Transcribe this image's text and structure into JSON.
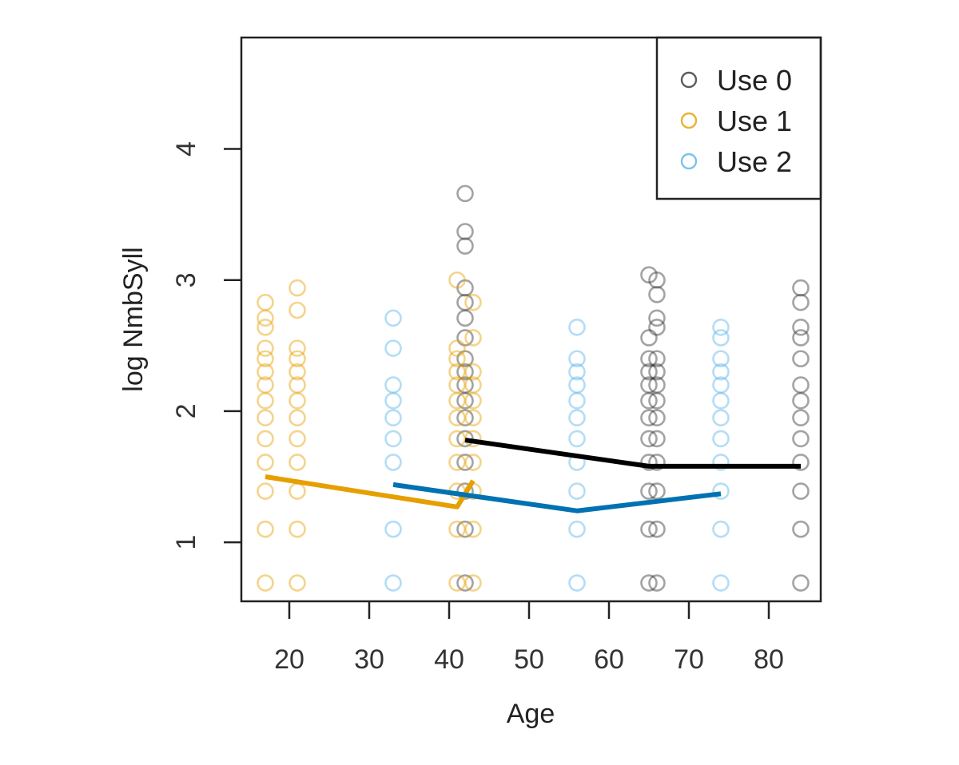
{
  "chart_data": {
    "type": "scatter",
    "xlabel": "Age",
    "ylabel": "log NmbSyll",
    "xlim": [
      14,
      86.5
    ],
    "ylim": [
      0.55,
      4.85
    ],
    "xticks": [
      20,
      30,
      40,
      50,
      60,
      70,
      80
    ],
    "yticks": [
      1,
      2,
      3,
      4
    ],
    "legend": {
      "position": "top-right",
      "entries": [
        "Use 0",
        "Use 1",
        "Use 2"
      ]
    },
    "series": [
      {
        "name": "Use 0",
        "color": "#333333",
        "points": [
          {
            "x": 42,
            "y": 0.69
          },
          {
            "x": 42,
            "y": 1.1
          },
          {
            "x": 42,
            "y": 1.39
          },
          {
            "x": 42,
            "y": 1.61
          },
          {
            "x": 42,
            "y": 1.79
          },
          {
            "x": 42,
            "y": 1.95
          },
          {
            "x": 42,
            "y": 2.08
          },
          {
            "x": 42,
            "y": 2.2
          },
          {
            "x": 42,
            "y": 2.3
          },
          {
            "x": 42,
            "y": 2.4
          },
          {
            "x": 42,
            "y": 2.56
          },
          {
            "x": 42,
            "y": 2.71
          },
          {
            "x": 42,
            "y": 2.83
          },
          {
            "x": 42,
            "y": 2.94
          },
          {
            "x": 42,
            "y": 3.26
          },
          {
            "x": 42,
            "y": 3.37
          },
          {
            "x": 42,
            "y": 3.66
          },
          {
            "x": 65,
            "y": 0.69
          },
          {
            "x": 65,
            "y": 1.1
          },
          {
            "x": 65,
            "y": 1.39
          },
          {
            "x": 65,
            "y": 1.61
          },
          {
            "x": 65,
            "y": 1.79
          },
          {
            "x": 65,
            "y": 1.95
          },
          {
            "x": 65,
            "y": 2.08
          },
          {
            "x": 65,
            "y": 2.2
          },
          {
            "x": 65,
            "y": 2.3
          },
          {
            "x": 65,
            "y": 2.4
          },
          {
            "x": 65,
            "y": 2.56
          },
          {
            "x": 65,
            "y": 3.04
          },
          {
            "x": 66,
            "y": 0.69
          },
          {
            "x": 66,
            "y": 1.1
          },
          {
            "x": 66,
            "y": 1.39
          },
          {
            "x": 66,
            "y": 1.61
          },
          {
            "x": 66,
            "y": 1.79
          },
          {
            "x": 66,
            "y": 1.95
          },
          {
            "x": 66,
            "y": 2.08
          },
          {
            "x": 66,
            "y": 2.2
          },
          {
            "x": 66,
            "y": 2.3
          },
          {
            "x": 66,
            "y": 2.4
          },
          {
            "x": 66,
            "y": 2.64
          },
          {
            "x": 66,
            "y": 2.71
          },
          {
            "x": 66,
            "y": 2.89
          },
          {
            "x": 66,
            "y": 3.0
          },
          {
            "x": 84,
            "y": 0.69
          },
          {
            "x": 84,
            "y": 1.1
          },
          {
            "x": 84,
            "y": 1.39
          },
          {
            "x": 84,
            "y": 1.61
          },
          {
            "x": 84,
            "y": 1.79
          },
          {
            "x": 84,
            "y": 1.95
          },
          {
            "x": 84,
            "y": 2.08
          },
          {
            "x": 84,
            "y": 2.2
          },
          {
            "x": 84,
            "y": 2.4
          },
          {
            "x": 84,
            "y": 2.56
          },
          {
            "x": 84,
            "y": 2.64
          },
          {
            "x": 84,
            "y": 2.83
          },
          {
            "x": 84,
            "y": 2.94
          }
        ],
        "trend": [
          {
            "x": 42,
            "y": 1.78
          },
          {
            "x": 65,
            "y": 1.58
          },
          {
            "x": 84,
            "y": 1.58
          }
        ]
      },
      {
        "name": "Use 1",
        "color": "#E69F00",
        "points": [
          {
            "x": 17,
            "y": 0.69
          },
          {
            "x": 17,
            "y": 1.1
          },
          {
            "x": 17,
            "y": 1.39
          },
          {
            "x": 17,
            "y": 1.61
          },
          {
            "x": 17,
            "y": 1.79
          },
          {
            "x": 17,
            "y": 1.95
          },
          {
            "x": 17,
            "y": 2.08
          },
          {
            "x": 17,
            "y": 2.2
          },
          {
            "x": 17,
            "y": 2.3
          },
          {
            "x": 17,
            "y": 2.4
          },
          {
            "x": 17,
            "y": 2.48
          },
          {
            "x": 17,
            "y": 2.64
          },
          {
            "x": 17,
            "y": 2.71
          },
          {
            "x": 17,
            "y": 2.83
          },
          {
            "x": 21,
            "y": 0.69
          },
          {
            "x": 21,
            "y": 1.1
          },
          {
            "x": 21,
            "y": 1.39
          },
          {
            "x": 21,
            "y": 1.61
          },
          {
            "x": 21,
            "y": 1.79
          },
          {
            "x": 21,
            "y": 1.95
          },
          {
            "x": 21,
            "y": 2.08
          },
          {
            "x": 21,
            "y": 2.2
          },
          {
            "x": 21,
            "y": 2.3
          },
          {
            "x": 21,
            "y": 2.4
          },
          {
            "x": 21,
            "y": 2.48
          },
          {
            "x": 21,
            "y": 2.77
          },
          {
            "x": 21,
            "y": 2.94
          },
          {
            "x": 41,
            "y": 0.69
          },
          {
            "x": 41,
            "y": 1.1
          },
          {
            "x": 41,
            "y": 1.39
          },
          {
            "x": 41,
            "y": 1.61
          },
          {
            "x": 41,
            "y": 1.79
          },
          {
            "x": 41,
            "y": 1.95
          },
          {
            "x": 41,
            "y": 2.08
          },
          {
            "x": 41,
            "y": 2.2
          },
          {
            "x": 41,
            "y": 2.3
          },
          {
            "x": 41,
            "y": 2.4
          },
          {
            "x": 41,
            "y": 2.48
          },
          {
            "x": 41,
            "y": 3.0
          },
          {
            "x": 43,
            "y": 0.69
          },
          {
            "x": 43,
            "y": 1.1
          },
          {
            "x": 43,
            "y": 1.39
          },
          {
            "x": 43,
            "y": 1.61
          },
          {
            "x": 43,
            "y": 1.79
          },
          {
            "x": 43,
            "y": 1.95
          },
          {
            "x": 43,
            "y": 2.08
          },
          {
            "x": 43,
            "y": 2.2
          },
          {
            "x": 43,
            "y": 2.3
          },
          {
            "x": 43,
            "y": 2.56
          },
          {
            "x": 43,
            "y": 2.83
          }
        ],
        "trend": [
          {
            "x": 17,
            "y": 1.5
          },
          {
            "x": 41,
            "y": 1.27
          },
          {
            "x": 43,
            "y": 1.47
          }
        ]
      },
      {
        "name": "Use 2",
        "color": "#56B4E9",
        "line_color": "#0072B2",
        "points": [
          {
            "x": 33,
            "y": 0.69
          },
          {
            "x": 33,
            "y": 1.1
          },
          {
            "x": 33,
            "y": 1.61
          },
          {
            "x": 33,
            "y": 1.79
          },
          {
            "x": 33,
            "y": 1.95
          },
          {
            "x": 33,
            "y": 2.08
          },
          {
            "x": 33,
            "y": 2.2
          },
          {
            "x": 33,
            "y": 2.48
          },
          {
            "x": 33,
            "y": 2.71
          },
          {
            "x": 56,
            "y": 0.69
          },
          {
            "x": 56,
            "y": 1.1
          },
          {
            "x": 56,
            "y": 1.39
          },
          {
            "x": 56,
            "y": 1.61
          },
          {
            "x": 56,
            "y": 1.79
          },
          {
            "x": 56,
            "y": 1.95
          },
          {
            "x": 56,
            "y": 2.08
          },
          {
            "x": 56,
            "y": 2.2
          },
          {
            "x": 56,
            "y": 2.3
          },
          {
            "x": 56,
            "y": 2.4
          },
          {
            "x": 56,
            "y": 2.64
          },
          {
            "x": 74,
            "y": 0.69
          },
          {
            "x": 74,
            "y": 1.1
          },
          {
            "x": 74,
            "y": 1.39
          },
          {
            "x": 74,
            "y": 1.61
          },
          {
            "x": 74,
            "y": 1.79
          },
          {
            "x": 74,
            "y": 1.95
          },
          {
            "x": 74,
            "y": 2.08
          },
          {
            "x": 74,
            "y": 2.2
          },
          {
            "x": 74,
            "y": 2.3
          },
          {
            "x": 74,
            "y": 2.4
          },
          {
            "x": 74,
            "y": 2.56
          },
          {
            "x": 74,
            "y": 2.64
          }
        ],
        "trend": [
          {
            "x": 33,
            "y": 1.44
          },
          {
            "x": 56,
            "y": 1.24
          },
          {
            "x": 74,
            "y": 1.37
          }
        ]
      }
    ]
  }
}
